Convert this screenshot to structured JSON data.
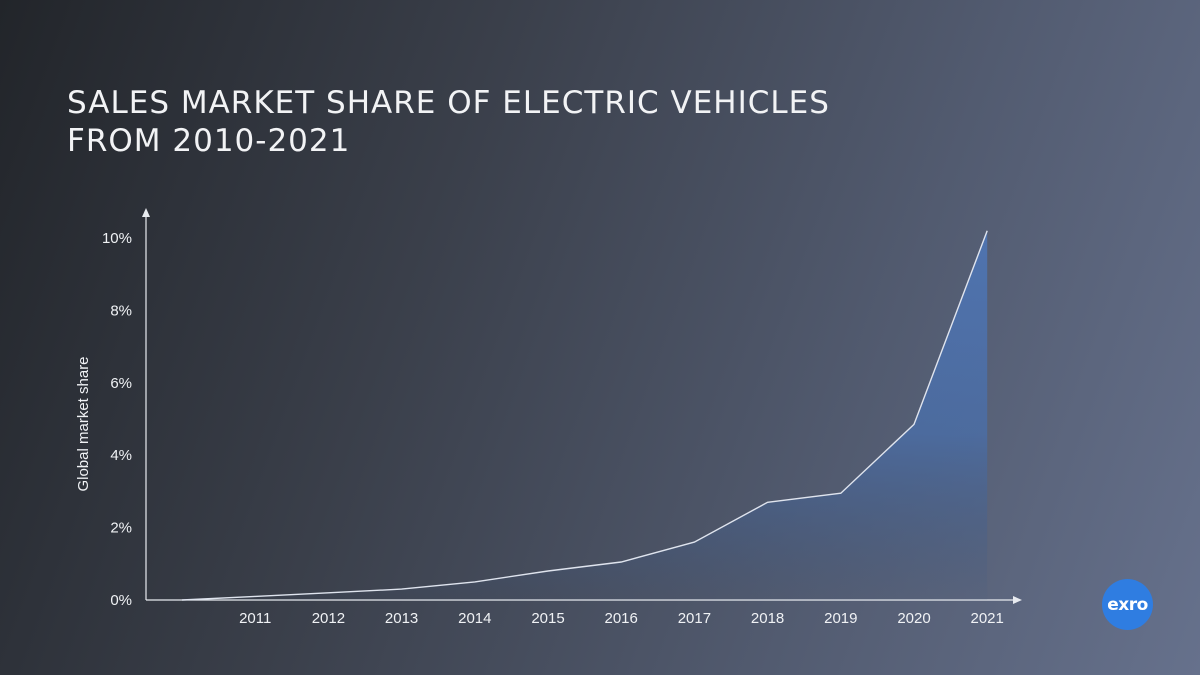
{
  "title_lines": [
    "SALES MARKET SHARE OF ELECTRIC VEHICLES",
    "FROM 2010-2021"
  ],
  "logo_text": "exro",
  "colors": {
    "line": "#dfe4ee",
    "area": "#4f75b3",
    "logo": "#2f7de1"
  },
  "chart_data": {
    "type": "area",
    "title": "SALES MARKET SHARE OF ELECTRIC VEHICLES FROM 2010-2021",
    "xlabel": "",
    "ylabel": "Global market share",
    "x": [
      2010,
      2011,
      2012,
      2013,
      2014,
      2015,
      2016,
      2017,
      2018,
      2019,
      2020,
      2021
    ],
    "x_tick_labels": [
      "2011",
      "2012",
      "2013",
      "2014",
      "2015",
      "2016",
      "2017",
      "2018",
      "2019",
      "2020",
      "2021"
    ],
    "values": [
      0.0,
      0.1,
      0.2,
      0.3,
      0.5,
      0.8,
      1.05,
      1.6,
      2.7,
      2.95,
      4.85,
      10.2
    ],
    "y_ticks": [
      0,
      2,
      4,
      6,
      8,
      10
    ],
    "y_tick_labels": [
      "0%",
      "2%",
      "4%",
      "6%",
      "8%",
      "10%"
    ],
    "ylim": [
      0,
      10.5
    ],
    "grid": false
  }
}
